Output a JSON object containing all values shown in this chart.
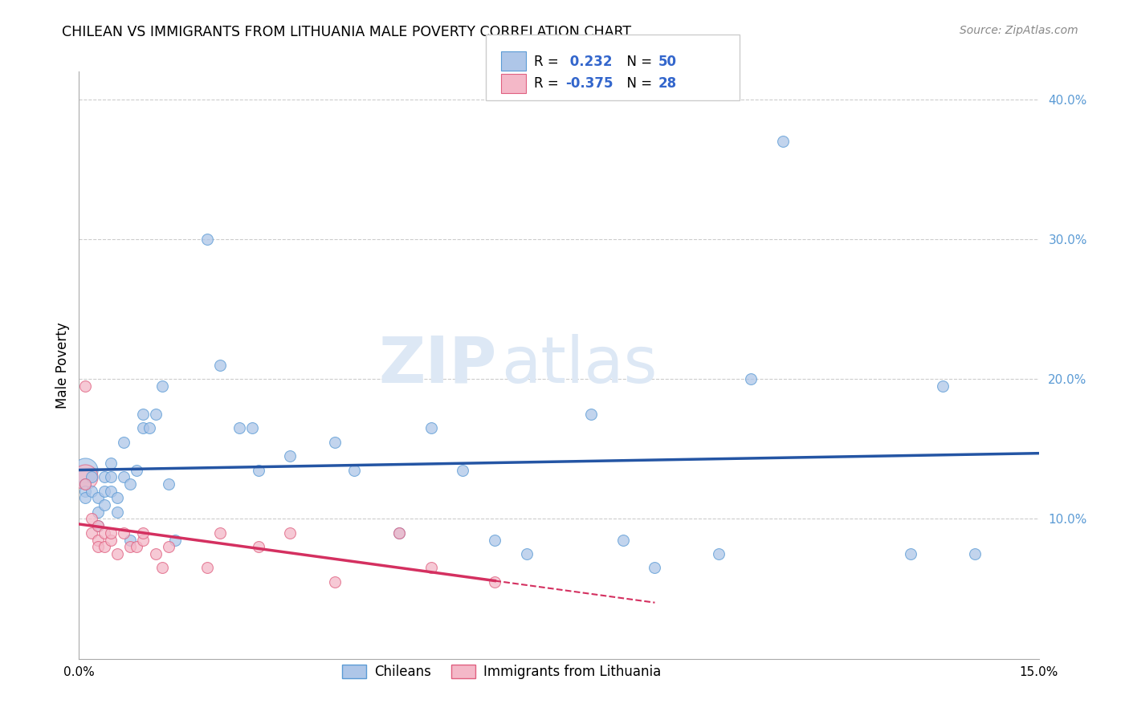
{
  "title": "CHILEAN VS IMMIGRANTS FROM LITHUANIA MALE POVERTY CORRELATION CHART",
  "source": "Source: ZipAtlas.com",
  "ylabel": "Male Poverty",
  "xlim": [
    0.0,
    0.15
  ],
  "ylim": [
    0.0,
    0.42
  ],
  "yticks": [
    0.1,
    0.2,
    0.3,
    0.4
  ],
  "chilean_color": "#aec6e8",
  "chilean_edge_color": "#5b9bd5",
  "lithuania_color": "#f4b8c8",
  "lithuania_edge_color": "#e06080",
  "trendline_chilean_color": "#2455a4",
  "trendline_lithuania_color": "#d43060",
  "chileans_label": "Chileans",
  "lithuania_label": "Immigrants from Lithuania",
  "watermark_zip": "ZIP",
  "watermark_atlas": "atlas",
  "chilean_x": [
    0.001,
    0.001,
    0.001,
    0.002,
    0.002,
    0.003,
    0.003,
    0.003,
    0.004,
    0.004,
    0.004,
    0.005,
    0.005,
    0.005,
    0.006,
    0.006,
    0.007,
    0.007,
    0.008,
    0.008,
    0.009,
    0.01,
    0.01,
    0.011,
    0.012,
    0.013,
    0.014,
    0.015,
    0.02,
    0.022,
    0.025,
    0.027,
    0.028,
    0.033,
    0.04,
    0.043,
    0.05,
    0.055,
    0.06,
    0.065,
    0.07,
    0.08,
    0.085,
    0.09,
    0.1,
    0.105,
    0.11,
    0.13,
    0.135,
    0.14
  ],
  "chilean_y": [
    0.125,
    0.12,
    0.115,
    0.13,
    0.12,
    0.115,
    0.105,
    0.095,
    0.13,
    0.12,
    0.11,
    0.14,
    0.13,
    0.12,
    0.115,
    0.105,
    0.155,
    0.13,
    0.085,
    0.125,
    0.135,
    0.165,
    0.175,
    0.165,
    0.175,
    0.195,
    0.125,
    0.085,
    0.3,
    0.21,
    0.165,
    0.165,
    0.135,
    0.145,
    0.155,
    0.135,
    0.09,
    0.165,
    0.135,
    0.085,
    0.075,
    0.175,
    0.085,
    0.065,
    0.075,
    0.2,
    0.37,
    0.075,
    0.195,
    0.075
  ],
  "chilean_big_x": [
    0.001
  ],
  "chilean_big_y": [
    0.135
  ],
  "lithuania_x": [
    0.001,
    0.001,
    0.002,
    0.002,
    0.003,
    0.003,
    0.003,
    0.004,
    0.004,
    0.005,
    0.005,
    0.006,
    0.007,
    0.008,
    0.009,
    0.01,
    0.01,
    0.012,
    0.013,
    0.014,
    0.02,
    0.022,
    0.028,
    0.033,
    0.04,
    0.05,
    0.055,
    0.065
  ],
  "lithuania_y": [
    0.125,
    0.195,
    0.1,
    0.09,
    0.095,
    0.085,
    0.08,
    0.09,
    0.08,
    0.085,
    0.09,
    0.075,
    0.09,
    0.08,
    0.08,
    0.085,
    0.09,
    0.075,
    0.065,
    0.08,
    0.065,
    0.09,
    0.08,
    0.09,
    0.055,
    0.09,
    0.065,
    0.055
  ],
  "lithuania_big_x": [
    0.001
  ],
  "lithuania_big_y": [
    0.13
  ]
}
